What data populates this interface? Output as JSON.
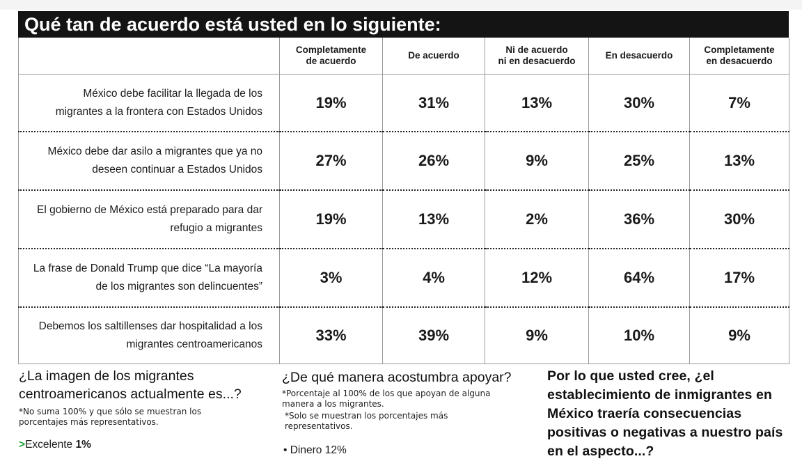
{
  "title": "Qué tan de acuerdo está usted en lo siguiente:",
  "colors": {
    "title_bg": "#141414",
    "title_text": "#ffffff",
    "arrow": "#1fa33a"
  },
  "headers": [
    "Completamente\nde acuerdo",
    "De acuerdo",
    "Ni de acuerdo\nni en desacuerdo",
    "En desacuerdo",
    "Completamente\nen desacuerdo"
  ],
  "rows": [
    {
      "statement": "México debe facilitar la llegada de los\nmigrantes a la frontera con Estados Unidos",
      "values": [
        "19%",
        "31%",
        "13%",
        "30%",
        "7%"
      ]
    },
    {
      "statement": "México debe dar asilo a migrantes que ya no\ndeseen continuar a Estados Unidos",
      "values": [
        "27%",
        "26%",
        "9%",
        "25%",
        "13%"
      ]
    },
    {
      "statement": "El gobierno de México está preparado para dar\nrefugio a migrantes",
      "values": [
        "19%",
        "13%",
        "2%",
        "36%",
        "30%"
      ]
    },
    {
      "statement": "La frase de Donald Trump que dice “La mayoría\nde los migrantes son delincuentes”",
      "values": [
        "3%",
        "4%",
        "12%",
        "64%",
        "17%"
      ]
    },
    {
      "statement": "Debemos los saltillenses dar hospitalidad a los\nmigrantes centroamericanos",
      "values": [
        "33%",
        "39%",
        "9%",
        "10%",
        "9%"
      ]
    }
  ],
  "image_section": {
    "question": "¿La imagen de los migrantes centroamericanos actualmente es...?",
    "note": "*No suma 100% y que sólo se muestran los porcentajes más representativos.",
    "items": [
      {
        "arrow": ">",
        "label": "Excelente",
        "value": "1%"
      }
    ]
  },
  "support_section": {
    "question": "¿De qué manera acostumbra apoyar?",
    "note1": "*Porcentaje al 100% de los que apoyan de alguna manera a los migrantes.",
    "note2": "*Solo se muestran los porcentajes más representativos.",
    "partial_item": "• Dinero 12%"
  },
  "consequences_section": {
    "question": "Por lo que usted cree, ¿el establecimiento de inmigrantes en México traería consecuencias positivas o negativas a nuestro país en el aspecto...?"
  }
}
